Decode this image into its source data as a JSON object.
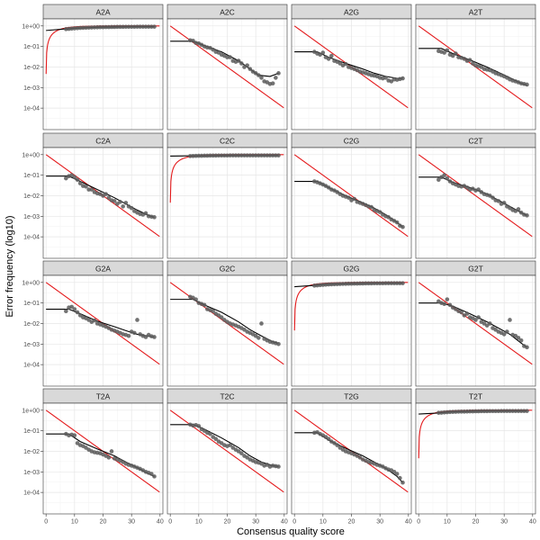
{
  "chart_data": {
    "type": "scatter",
    "layout": "facet-grid",
    "xlabel": "Consensus quality score",
    "ylabel": "Error frequency (log10)",
    "x_scale": "linear",
    "y_scale": "log10",
    "xlim": [
      -1,
      41
    ],
    "ylim": [
      9e-06,
      2.2
    ],
    "x_ticks": [
      0,
      10,
      20,
      30,
      40
    ],
    "x_tick_labels": [
      "0",
      "10",
      "20",
      "30",
      "40"
    ],
    "y_ticks": [
      1,
      0.1,
      0.01,
      0.001,
      0.0001
    ],
    "y_tick_labels": [
      "1e+00",
      "1e-01",
      "1e-02",
      "1e-03",
      "1e-04"
    ],
    "grid": true,
    "legend": "none",
    "colors": {
      "points": "#5a5a5a",
      "fitted_line": "#000000",
      "nominal_line": "#e41a1c",
      "strip_fill": "#d9d9d9",
      "strip_border": "#333333",
      "panel_border": "#333333",
      "grid_major": "#e6e6e6",
      "grid_minor": "#f2f2f2"
    },
    "quality_scores": [
      7,
      8,
      9,
      10,
      11,
      12,
      13,
      14,
      15,
      16,
      17,
      18,
      19,
      20,
      21,
      22,
      23,
      24,
      25,
      26,
      27,
      28,
      29,
      30,
      31,
      32,
      33,
      34,
      35,
      36,
      37,
      38
    ],
    "nominal_curve": {
      "transitions": [
        "A2A",
        "C2C",
        "G2G",
        "T2T"
      ],
      "self": "1 - 10^(-q/10)",
      "other": "10^(-q/10)"
    },
    "facets": [
      {
        "label": "A2A",
        "points": [
          0.7,
          0.72,
          0.74,
          0.76,
          0.78,
          0.8,
          0.81,
          0.82,
          0.83,
          0.84,
          0.85,
          0.86,
          0.87,
          0.87,
          0.88,
          0.88,
          0.89,
          0.89,
          0.9,
          0.9,
          0.9,
          0.91,
          0.91,
          0.91,
          0.91,
          0.92,
          0.92,
          0.92,
          0.92,
          0.92,
          0.92,
          0.92
        ],
        "fitted": [
          [
            0,
            0.6
          ],
          [
            6,
            0.7
          ],
          [
            10,
            0.78
          ],
          [
            20,
            0.88
          ],
          [
            30,
            0.91
          ],
          [
            38,
            0.92
          ]
        ]
      },
      {
        "label": "A2C",
        "points": [
          0.2,
          0.19,
          0.15,
          0.14,
          0.12,
          0.1,
          0.09,
          0.085,
          0.07,
          0.055,
          0.05,
          0.04,
          0.035,
          0.03,
          0.03,
          0.02,
          0.018,
          0.02,
          0.015,
          0.01,
          0.012,
          0.008,
          0.006,
          0.005,
          0.004,
          0.003,
          0.002,
          0.0018,
          0.0015,
          0.0016,
          0.003,
          0.005
        ],
        "fitted": [
          [
            0,
            0.18
          ],
          [
            8,
            0.18
          ],
          [
            12,
            0.11
          ],
          [
            18,
            0.055
          ],
          [
            24,
            0.02
          ],
          [
            28,
            0.008
          ],
          [
            31,
            0.004
          ],
          [
            35,
            0.0035
          ],
          [
            38,
            0.005
          ]
        ]
      },
      {
        "label": "A2G",
        "points": [
          0.055,
          0.045,
          0.04,
          0.05,
          0.03,
          0.025,
          0.035,
          0.02,
          0.018,
          0.015,
          0.012,
          0.014,
          0.01,
          0.009,
          0.008,
          0.007,
          0.006,
          0.0055,
          0.005,
          0.0045,
          0.004,
          0.0038,
          0.0035,
          0.003,
          0.0028,
          0.003,
          0.0022,
          0.002,
          0.0025,
          0.0024,
          0.0026,
          0.0028
        ],
        "fitted": [
          [
            0,
            0.055
          ],
          [
            8,
            0.055
          ],
          [
            12,
            0.03
          ],
          [
            18,
            0.015
          ],
          [
            24,
            0.008
          ],
          [
            28,
            0.005
          ],
          [
            32,
            0.0035
          ],
          [
            36,
            0.0028
          ],
          [
            38,
            0.0028
          ]
        ]
      },
      {
        "label": "A2T",
        "points": [
          0.06,
          0.055,
          0.05,
          0.065,
          0.04,
          0.035,
          0.045,
          0.03,
          0.028,
          0.025,
          0.02,
          0.022,
          0.015,
          0.012,
          0.011,
          0.01,
          0.008,
          0.0075,
          0.007,
          0.006,
          0.005,
          0.0045,
          0.004,
          0.0035,
          0.003,
          0.0025,
          0.0022,
          0.002,
          0.0018,
          0.0016,
          0.0015,
          0.0014
        ],
        "fitted": [
          [
            0,
            0.08
          ],
          [
            8,
            0.08
          ],
          [
            12,
            0.045
          ],
          [
            18,
            0.022
          ],
          [
            24,
            0.01
          ],
          [
            28,
            0.0055
          ],
          [
            32,
            0.003
          ],
          [
            36,
            0.0016
          ],
          [
            38,
            0.0013
          ]
        ]
      },
      {
        "label": "C2A",
        "points": [
          0.07,
          0.09,
          0.1,
          0.08,
          0.06,
          0.04,
          0.03,
          0.028,
          0.02,
          0.02,
          0.015,
          0.013,
          0.012,
          0.01,
          0.012,
          0.008,
          0.006,
          0.0055,
          0.004,
          0.005,
          0.003,
          0.0045,
          0.003,
          0.0025,
          0.0018,
          0.0015,
          0.0013,
          0.0012,
          0.0014,
          0.001,
          0.00095,
          0.0009
        ],
        "fitted": [
          [
            0,
            0.09
          ],
          [
            8,
            0.09
          ],
          [
            12,
            0.05
          ],
          [
            18,
            0.02
          ],
          [
            24,
            0.008
          ],
          [
            28,
            0.004
          ],
          [
            32,
            0.002
          ],
          [
            36,
            0.0011
          ],
          [
            38,
            0.0009
          ]
        ]
      },
      {
        "label": "C2C",
        "points": [
          0.85,
          0.86,
          0.87,
          0.88,
          0.88,
          0.89,
          0.89,
          0.9,
          0.9,
          0.9,
          0.91,
          0.91,
          0.91,
          0.91,
          0.92,
          0.92,
          0.92,
          0.92,
          0.92,
          0.92,
          0.92,
          0.92,
          0.92,
          0.92,
          0.92,
          0.92,
          0.92,
          0.92,
          0.92,
          0.92,
          0.92,
          0.92
        ],
        "fitted": [
          [
            0,
            0.85
          ],
          [
            10,
            0.88
          ],
          [
            20,
            0.9
          ],
          [
            30,
            0.91
          ],
          [
            38,
            0.92
          ]
        ]
      },
      {
        "label": "C2G",
        "points": [
          0.05,
          0.045,
          0.04,
          0.035,
          0.03,
          0.025,
          0.02,
          0.018,
          0.015,
          0.012,
          0.01,
          0.009,
          0.008,
          0.006,
          0.007,
          0.005,
          0.0045,
          0.004,
          0.0035,
          0.003,
          0.0028,
          0.002,
          0.0018,
          0.0016,
          0.0012,
          0.001,
          0.0009,
          0.0007,
          0.0006,
          0.0005,
          0.00035,
          0.0003
        ],
        "fitted": [
          [
            0,
            0.05
          ],
          [
            8,
            0.05
          ],
          [
            12,
            0.025
          ],
          [
            18,
            0.01
          ],
          [
            24,
            0.0045
          ],
          [
            28,
            0.0025
          ],
          [
            32,
            0.0012
          ],
          [
            36,
            0.0005
          ],
          [
            38,
            0.0003
          ]
        ]
      },
      {
        "label": "C2T",
        "points": [
          0.06,
          0.08,
          0.1,
          0.07,
          0.05,
          0.04,
          0.035,
          0.03,
          0.028,
          0.03,
          0.025,
          0.02,
          0.022,
          0.018,
          0.02,
          0.015,
          0.012,
          0.011,
          0.01,
          0.008,
          0.006,
          0.0055,
          0.004,
          0.0045,
          0.003,
          0.0025,
          0.002,
          0.0018,
          0.0022,
          0.0015,
          0.0012,
          0.0011
        ],
        "fitted": [
          [
            0,
            0.08
          ],
          [
            8,
            0.08
          ],
          [
            12,
            0.045
          ],
          [
            18,
            0.025
          ],
          [
            24,
            0.012
          ],
          [
            28,
            0.006
          ],
          [
            32,
            0.003
          ],
          [
            36,
            0.0015
          ],
          [
            38,
            0.0011
          ]
        ]
      },
      {
        "label": "G2A",
        "points": [
          0.04,
          0.06,
          0.065,
          0.05,
          0.035,
          0.025,
          0.02,
          0.018,
          0.015,
          0.012,
          0.014,
          0.01,
          0.009,
          0.008,
          0.007,
          0.006,
          0.005,
          0.0045,
          0.004,
          0.0035,
          0.003,
          0.0028,
          0.0025,
          0.004,
          0.0035,
          0.015,
          0.003,
          0.0025,
          0.0022,
          0.0028,
          0.0024,
          0.0022
        ],
        "fitted": [
          [
            0,
            0.05
          ],
          [
            8,
            0.05
          ],
          [
            12,
            0.03
          ],
          [
            18,
            0.013
          ],
          [
            24,
            0.007
          ],
          [
            28,
            0.0045
          ],
          [
            32,
            0.003
          ],
          [
            36,
            0.0024
          ],
          [
            38,
            0.0022
          ]
        ]
      },
      {
        "label": "G2C",
        "points": [
          0.2,
          0.18,
          0.15,
          0.1,
          0.09,
          0.08,
          0.05,
          0.045,
          0.04,
          0.03,
          0.025,
          0.02,
          0.015,
          0.012,
          0.01,
          0.009,
          0.008,
          0.007,
          0.006,
          0.005,
          0.004,
          0.0035,
          0.003,
          0.0025,
          0.002,
          0.01,
          0.0018,
          0.0015,
          0.0013,
          0.0012,
          0.0011,
          0.001
        ],
        "fitted": [
          [
            0,
            0.15
          ],
          [
            8,
            0.15
          ],
          [
            12,
            0.08
          ],
          [
            18,
            0.035
          ],
          [
            24,
            0.012
          ],
          [
            28,
            0.005
          ],
          [
            32,
            0.0025
          ],
          [
            36,
            0.0013
          ],
          [
            38,
            0.0011
          ]
        ]
      },
      {
        "label": "G2G",
        "points": [
          0.7,
          0.72,
          0.74,
          0.76,
          0.78,
          0.8,
          0.81,
          0.82,
          0.83,
          0.84,
          0.85,
          0.86,
          0.87,
          0.87,
          0.88,
          0.88,
          0.89,
          0.89,
          0.9,
          0.9,
          0.9,
          0.91,
          0.91,
          0.91,
          0.91,
          0.92,
          0.92,
          0.92,
          0.92,
          0.92,
          0.92,
          0.92
        ],
        "fitted": [
          [
            0,
            0.62
          ],
          [
            6,
            0.7
          ],
          [
            10,
            0.78
          ],
          [
            20,
            0.88
          ],
          [
            30,
            0.91
          ],
          [
            38,
            0.92
          ]
        ]
      },
      {
        "label": "G2T",
        "points": [
          0.12,
          0.1,
          0.09,
          0.15,
          0.08,
          0.06,
          0.05,
          0.04,
          0.035,
          0.025,
          0.03,
          0.02,
          0.018,
          0.015,
          0.02,
          0.012,
          0.01,
          0.008,
          0.01,
          0.006,
          0.005,
          0.004,
          0.0035,
          0.003,
          0.004,
          0.015,
          0.0028,
          0.0025,
          0.002,
          0.0015,
          0.0008,
          0.0007
        ],
        "fitted": [
          [
            0,
            0.1
          ],
          [
            8,
            0.1
          ],
          [
            12,
            0.07
          ],
          [
            18,
            0.03
          ],
          [
            24,
            0.012
          ],
          [
            28,
            0.006
          ],
          [
            32,
            0.003
          ],
          [
            36,
            0.0011
          ],
          [
            38,
            0.0007
          ]
        ]
      },
      {
        "label": "T2A",
        "points": [
          0.07,
          0.06,
          0.065,
          0.06,
          0.025,
          0.02,
          0.018,
          0.015,
          0.012,
          0.01,
          0.009,
          0.0085,
          0.008,
          0.007,
          0.006,
          0.005,
          0.01,
          0.0045,
          0.004,
          0.0035,
          0.003,
          0.0025,
          0.0022,
          0.002,
          0.0018,
          0.0016,
          0.0014,
          0.0012,
          0.001,
          0.0009,
          0.0008,
          0.0006
        ],
        "fitted": [
          [
            0,
            0.07
          ],
          [
            8,
            0.07
          ],
          [
            12,
            0.03
          ],
          [
            18,
            0.013
          ],
          [
            24,
            0.006
          ],
          [
            28,
            0.003
          ],
          [
            32,
            0.0016
          ],
          [
            36,
            0.0008
          ],
          [
            38,
            0.0006
          ]
        ]
      },
      {
        "label": "T2C",
        "points": [
          0.2,
          0.18,
          0.19,
          0.17,
          0.12,
          0.1,
          0.08,
          0.07,
          0.05,
          0.04,
          0.03,
          0.025,
          0.02,
          0.018,
          0.02,
          0.015,
          0.012,
          0.01,
          0.008,
          0.006,
          0.005,
          0.004,
          0.0035,
          0.003,
          0.0028,
          0.0025,
          0.002,
          0.0022,
          0.0018,
          0.002,
          0.0019,
          0.0018
        ],
        "fitted": [
          [
            0,
            0.2
          ],
          [
            8,
            0.2
          ],
          [
            12,
            0.12
          ],
          [
            18,
            0.045
          ],
          [
            24,
            0.015
          ],
          [
            28,
            0.006
          ],
          [
            32,
            0.003
          ],
          [
            36,
            0.002
          ],
          [
            38,
            0.0018
          ]
        ]
      },
      {
        "label": "T2G",
        "points": [
          0.08,
          0.085,
          0.07,
          0.06,
          0.05,
          0.04,
          0.03,
          0.025,
          0.02,
          0.015,
          0.012,
          0.01,
          0.009,
          0.008,
          0.007,
          0.006,
          0.005,
          0.004,
          0.0035,
          0.003,
          0.0028,
          0.0025,
          0.0022,
          0.002,
          0.0018,
          0.0015,
          0.0013,
          0.0012,
          0.001,
          0.0008,
          0.0005,
          0.0003
        ],
        "fitted": [
          [
            0,
            0.08
          ],
          [
            8,
            0.08
          ],
          [
            12,
            0.035
          ],
          [
            18,
            0.014
          ],
          [
            24,
            0.006
          ],
          [
            28,
            0.003
          ],
          [
            32,
            0.0015
          ],
          [
            36,
            0.0006
          ],
          [
            38,
            0.0003
          ]
        ]
      },
      {
        "label": "T2T",
        "points": [
          0.75,
          0.76,
          0.78,
          0.8,
          0.82,
          0.83,
          0.84,
          0.85,
          0.86,
          0.86,
          0.87,
          0.88,
          0.88,
          0.89,
          0.89,
          0.9,
          0.9,
          0.9,
          0.91,
          0.91,
          0.91,
          0.91,
          0.92,
          0.92,
          0.92,
          0.92,
          0.92,
          0.92,
          0.92,
          0.92,
          0.92,
          0.92
        ],
        "fitted": [
          [
            0,
            0.65
          ],
          [
            6,
            0.72
          ],
          [
            10,
            0.8
          ],
          [
            20,
            0.9
          ],
          [
            30,
            0.91
          ],
          [
            38,
            0.92
          ]
        ]
      }
    ]
  }
}
